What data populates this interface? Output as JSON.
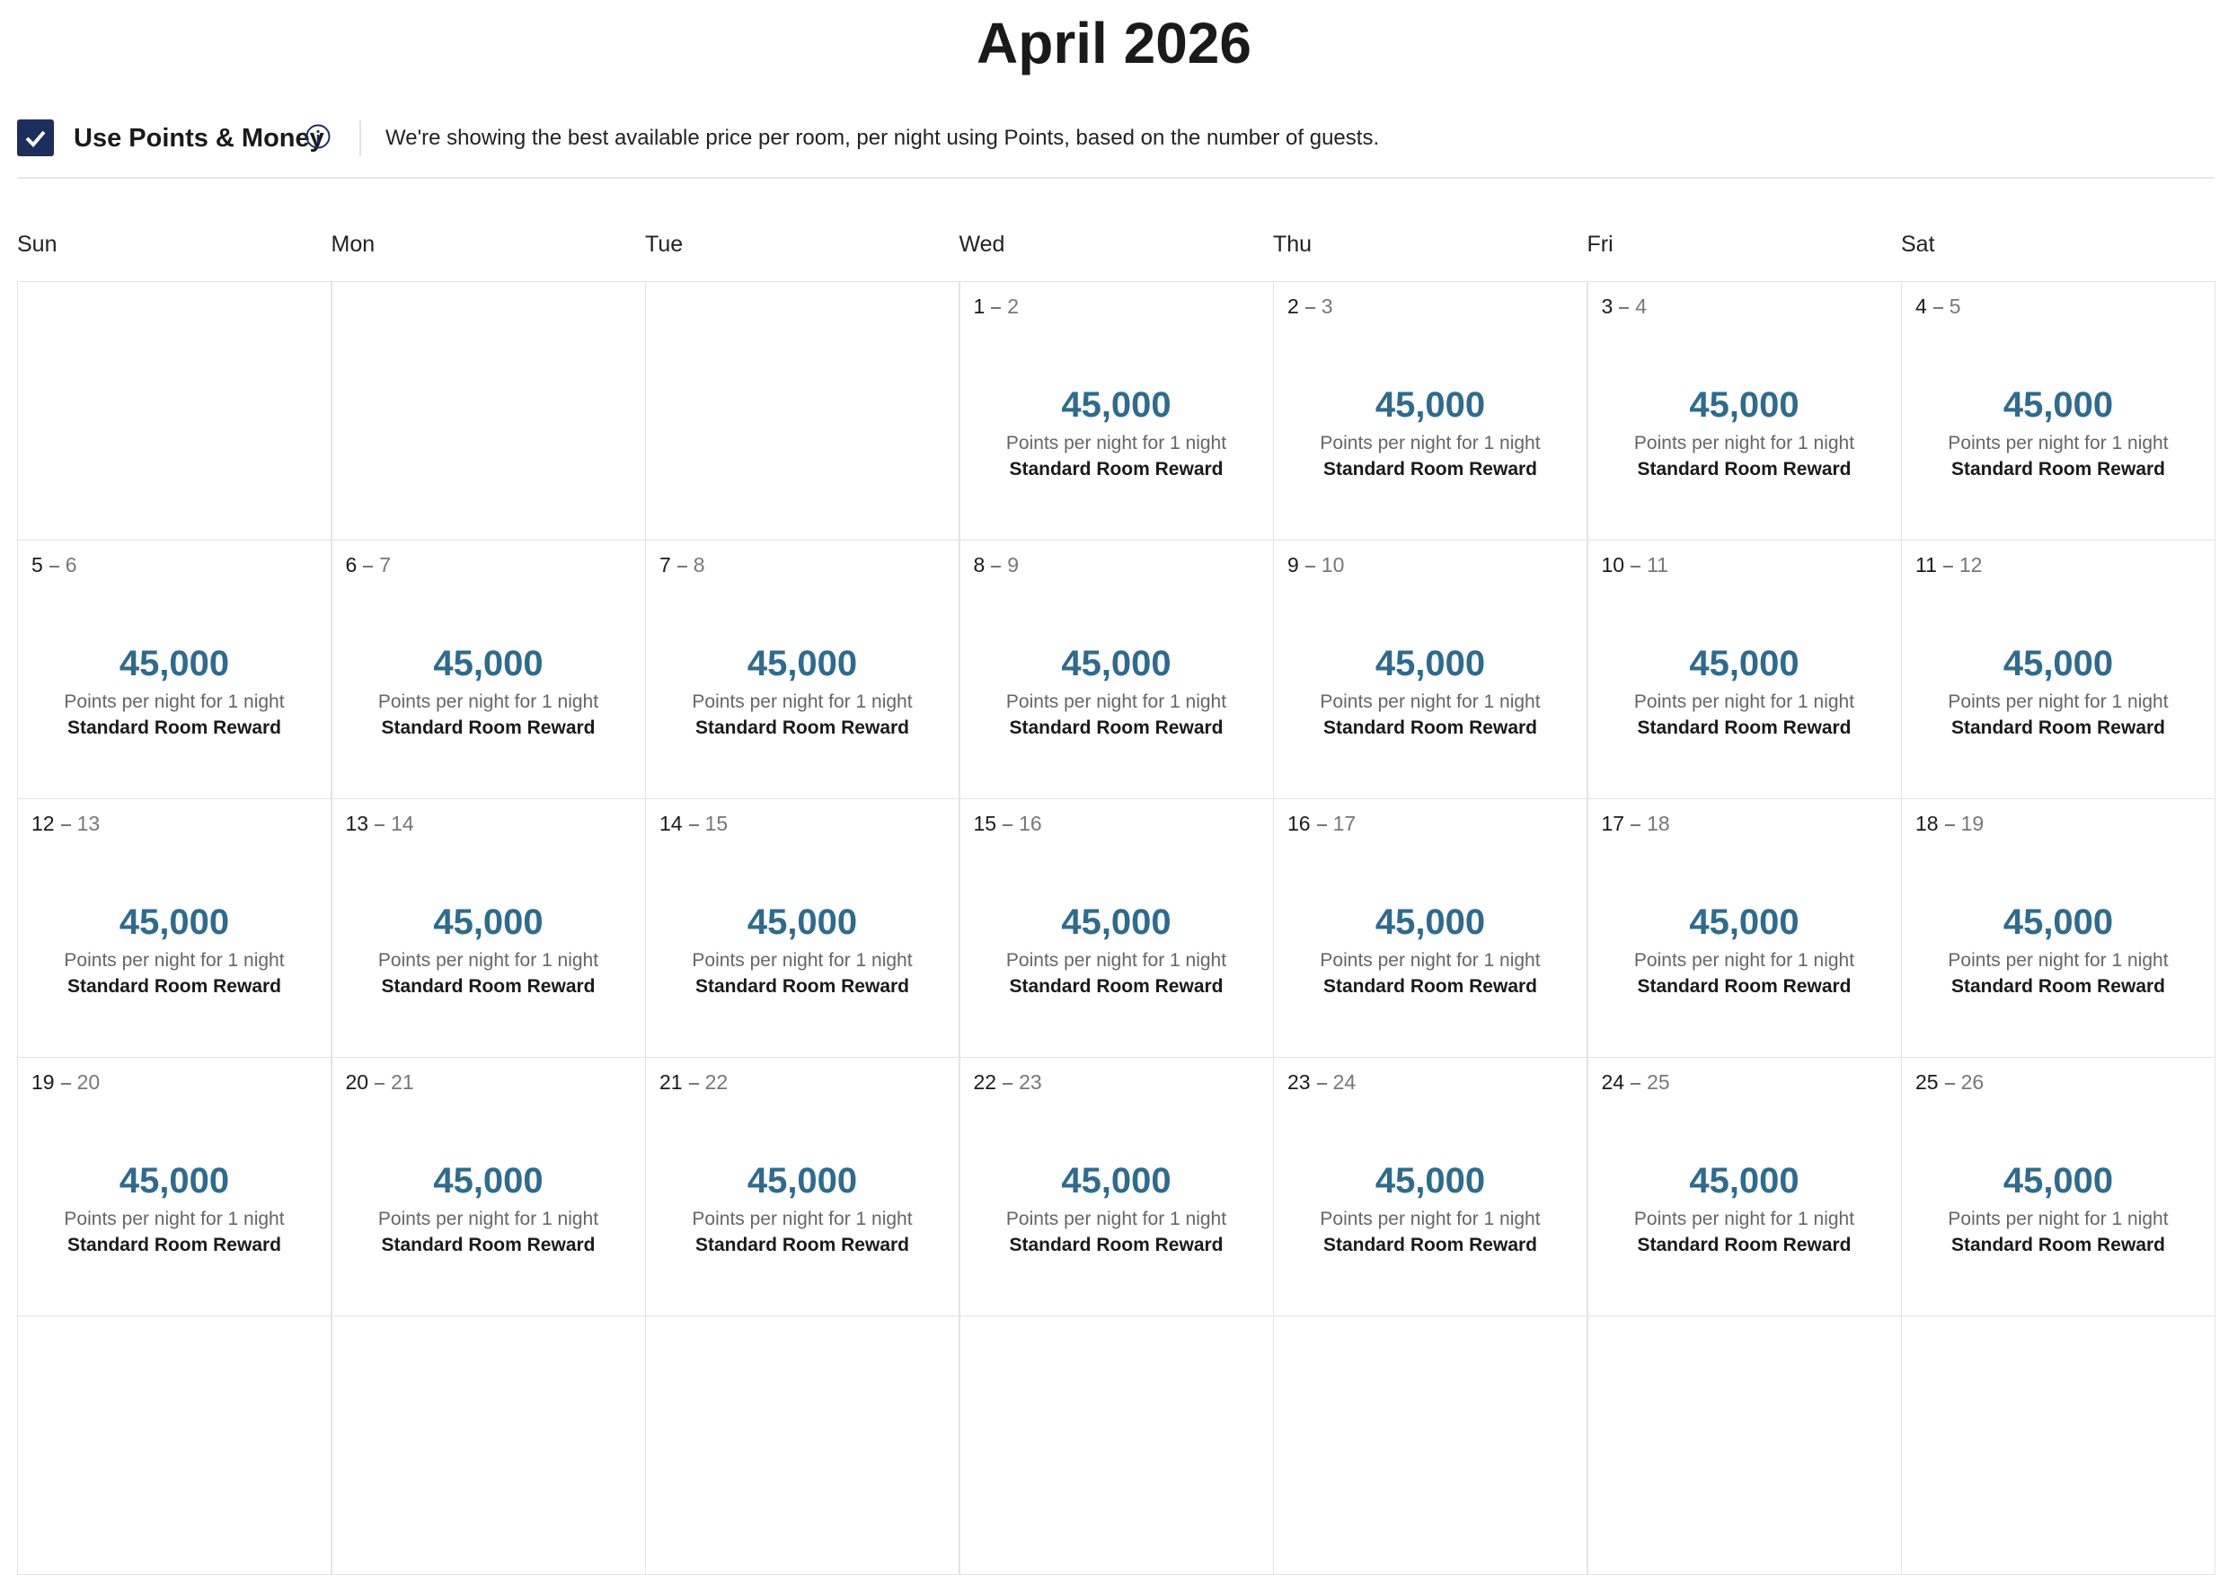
{
  "header": {
    "title": "April 2026"
  },
  "toolbar": {
    "checkbox_label": "Use Points & Money",
    "description": "We're showing the best available price per room, per night using Points, based on the number of guests."
  },
  "calendar": {
    "weekdays": [
      "Sun",
      "Mon",
      "Tue",
      "Wed",
      "Thu",
      "Fri",
      "Sat"
    ],
    "weeks": [
      [
        null,
        null,
        null,
        {
          "from": 1,
          "to": 2,
          "price": "45,000",
          "unit": "Points per night for 1 night",
          "rate": "Standard Room Reward"
        },
        {
          "from": 2,
          "to": 3,
          "price": "45,000",
          "unit": "Points per night for 1 night",
          "rate": "Standard Room Reward"
        },
        {
          "from": 3,
          "to": 4,
          "price": "45,000",
          "unit": "Points per night for 1 night",
          "rate": "Standard Room Reward"
        },
        {
          "from": 4,
          "to": 5,
          "price": "45,000",
          "unit": "Points per night for 1 night",
          "rate": "Standard Room Reward"
        }
      ],
      [
        {
          "from": 5,
          "to": 6,
          "price": "45,000",
          "unit": "Points per night for 1 night",
          "rate": "Standard Room Reward"
        },
        {
          "from": 6,
          "to": 7,
          "price": "45,000",
          "unit": "Points per night for 1 night",
          "rate": "Standard Room Reward"
        },
        {
          "from": 7,
          "to": 8,
          "price": "45,000",
          "unit": "Points per night for 1 night",
          "rate": "Standard Room Reward"
        },
        {
          "from": 8,
          "to": 9,
          "price": "45,000",
          "unit": "Points per night for 1 night",
          "rate": "Standard Room Reward"
        },
        {
          "from": 9,
          "to": 10,
          "price": "45,000",
          "unit": "Points per night for 1 night",
          "rate": "Standard Room Reward"
        },
        {
          "from": 10,
          "to": 11,
          "price": "45,000",
          "unit": "Points per night for 1 night",
          "rate": "Standard Room Reward"
        },
        {
          "from": 11,
          "to": 12,
          "price": "45,000",
          "unit": "Points per night for 1 night",
          "rate": "Standard Room Reward"
        }
      ],
      [
        {
          "from": 12,
          "to": 13,
          "price": "45,000",
          "unit": "Points per night for 1 night",
          "rate": "Standard Room Reward"
        },
        {
          "from": 13,
          "to": 14,
          "price": "45,000",
          "unit": "Points per night for 1 night",
          "rate": "Standard Room Reward"
        },
        {
          "from": 14,
          "to": 15,
          "price": "45,000",
          "unit": "Points per night for 1 night",
          "rate": "Standard Room Reward"
        },
        {
          "from": 15,
          "to": 16,
          "price": "45,000",
          "unit": "Points per night for 1 night",
          "rate": "Standard Room Reward"
        },
        {
          "from": 16,
          "to": 17,
          "price": "45,000",
          "unit": "Points per night for 1 night",
          "rate": "Standard Room Reward"
        },
        {
          "from": 17,
          "to": 18,
          "price": "45,000",
          "unit": "Points per night for 1 night",
          "rate": "Standard Room Reward"
        },
        {
          "from": 18,
          "to": 19,
          "price": "45,000",
          "unit": "Points per night for 1 night",
          "rate": "Standard Room Reward"
        }
      ],
      [
        {
          "from": 19,
          "to": 20,
          "price": "45,000",
          "unit": "Points per night for 1 night",
          "rate": "Standard Room Reward"
        },
        {
          "from": 20,
          "to": 21,
          "price": "45,000",
          "unit": "Points per night for 1 night",
          "rate": "Standard Room Reward"
        },
        {
          "from": 21,
          "to": 22,
          "price": "45,000",
          "unit": "Points per night for 1 night",
          "rate": "Standard Room Reward"
        },
        {
          "from": 22,
          "to": 23,
          "price": "45,000",
          "unit": "Points per night for 1 night",
          "rate": "Standard Room Reward"
        },
        {
          "from": 23,
          "to": 24,
          "price": "45,000",
          "unit": "Points per night for 1 night",
          "rate": "Standard Room Reward"
        },
        {
          "from": 24,
          "to": 25,
          "price": "45,000",
          "unit": "Points per night for 1 night",
          "rate": "Standard Room Reward"
        },
        {
          "from": 25,
          "to": 26,
          "price": "45,000",
          "unit": "Points per night for 1 night",
          "rate": "Standard Room Reward"
        }
      ]
    ]
  }
}
